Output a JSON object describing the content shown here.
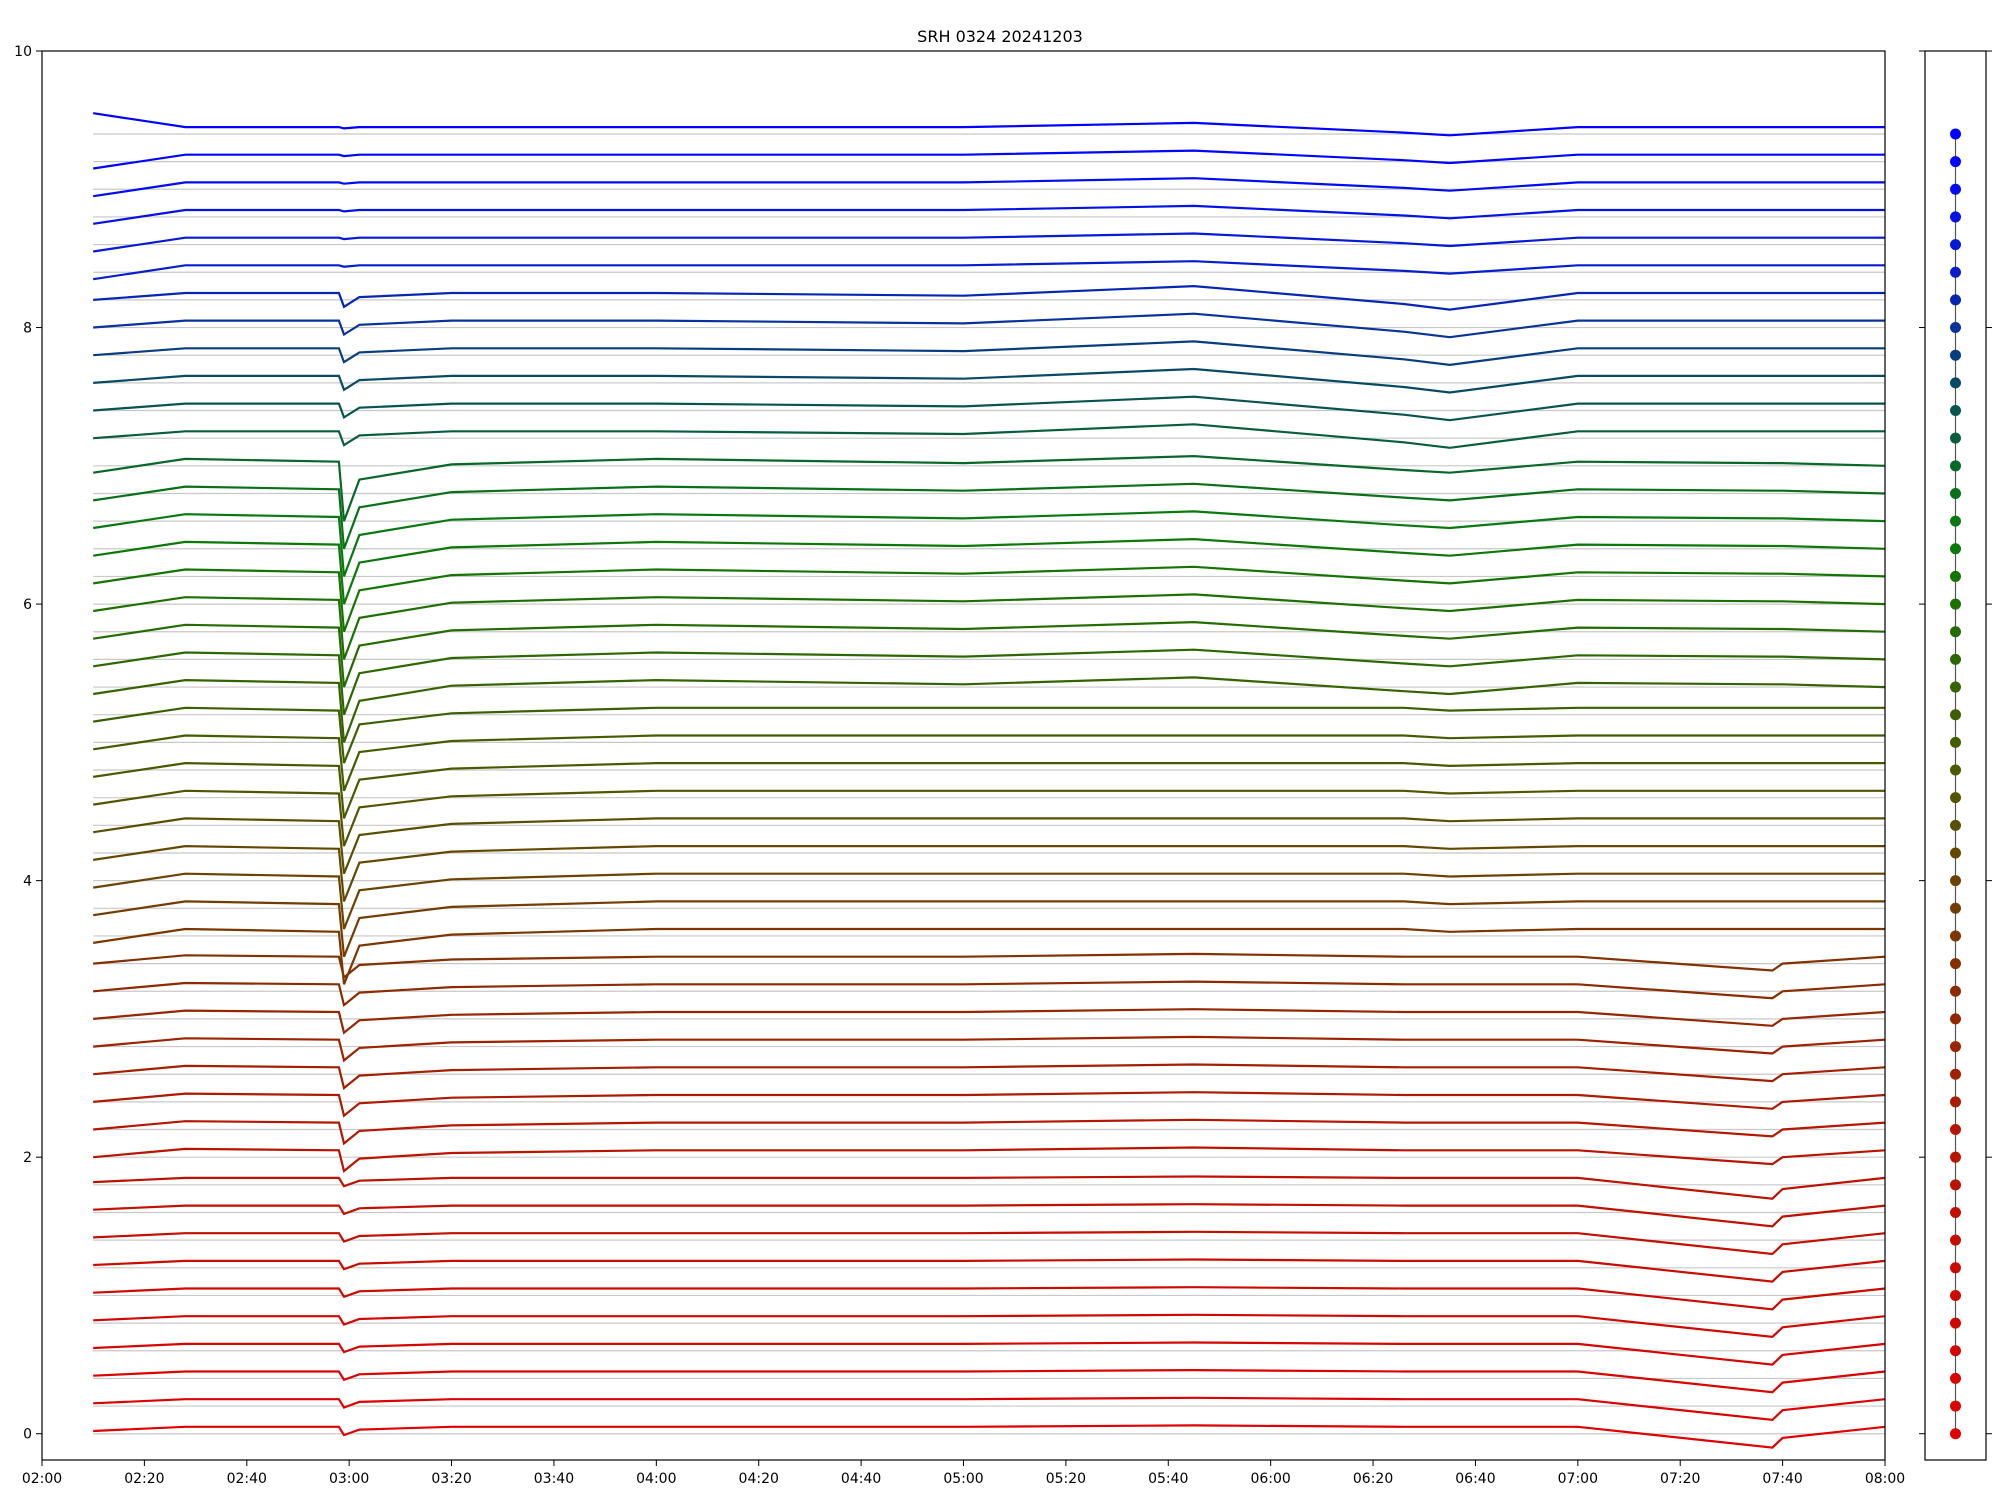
{
  "chart_data": [
    {
      "type": "line",
      "title": "SRH 0324 20241203",
      "x": [
        "02:10",
        "02:28",
        "02:58",
        "02:59",
        "03:02",
        "03:20",
        "04:00",
        "05:00",
        "05:45",
        "06:26",
        "06:35",
        "07:00",
        "07:38",
        "07:40",
        "08:00"
      ],
      "xlim": [
        "02:00",
        "08:00"
      ],
      "xticks": [
        "02:00",
        "02:20",
        "02:40",
        "03:00",
        "03:20",
        "03:40",
        "04:00",
        "04:20",
        "04:40",
        "05:00",
        "05:20",
        "05:40",
        "06:00",
        "06:20",
        "06:40",
        "07:00",
        "07:20",
        "07:40",
        "08:00"
      ],
      "ylim": [
        -0.19,
        10
      ],
      "yticks": [
        0,
        2,
        4,
        6,
        8,
        10
      ],
      "series": [
        {
          "color": "#e00000",
          "values": [
            0.02,
            0.05,
            0.05,
            -0.01,
            0.03,
            0.05,
            0.05,
            0.05,
            0.06,
            0.05,
            0.05,
            0.05,
            -0.1,
            -0.03,
            0.05
          ]
        },
        {
          "color": "#dc0200",
          "values": [
            0.22,
            0.25,
            0.25,
            0.19,
            0.23,
            0.25,
            0.25,
            0.25,
            0.26,
            0.25,
            0.25,
            0.25,
            0.1,
            0.17,
            0.25
          ]
        },
        {
          "color": "#d80400",
          "values": [
            0.42,
            0.45,
            0.45,
            0.39,
            0.43,
            0.45,
            0.45,
            0.45,
            0.46,
            0.45,
            0.45,
            0.45,
            0.3,
            0.37,
            0.45
          ]
        },
        {
          "color": "#d40600",
          "values": [
            0.62,
            0.65,
            0.65,
            0.59,
            0.63,
            0.65,
            0.65,
            0.65,
            0.66,
            0.65,
            0.65,
            0.65,
            0.5,
            0.57,
            0.65
          ]
        },
        {
          "color": "#d00800",
          "values": [
            0.82,
            0.85,
            0.85,
            0.79,
            0.83,
            0.85,
            0.85,
            0.85,
            0.86,
            0.85,
            0.85,
            0.85,
            0.7,
            0.77,
            0.85
          ]
        },
        {
          "color": "#cc0a00",
          "values": [
            1.02,
            1.05,
            1.05,
            0.99,
            1.03,
            1.05,
            1.05,
            1.05,
            1.06,
            1.05,
            1.05,
            1.05,
            0.9,
            0.97,
            1.05
          ]
        },
        {
          "color": "#c80c00",
          "values": [
            1.22,
            1.25,
            1.25,
            1.19,
            1.23,
            1.25,
            1.25,
            1.25,
            1.26,
            1.25,
            1.25,
            1.25,
            1.1,
            1.17,
            1.25
          ]
        },
        {
          "color": "#c40e00",
          "values": [
            1.42,
            1.45,
            1.45,
            1.39,
            1.43,
            1.45,
            1.45,
            1.45,
            1.46,
            1.45,
            1.45,
            1.45,
            1.3,
            1.37,
            1.45
          ]
        },
        {
          "color": "#c01000",
          "values": [
            1.62,
            1.65,
            1.65,
            1.59,
            1.63,
            1.65,
            1.65,
            1.65,
            1.66,
            1.65,
            1.65,
            1.65,
            1.5,
            1.57,
            1.65
          ]
        },
        {
          "color": "#bc1200",
          "values": [
            1.82,
            1.85,
            1.85,
            1.79,
            1.83,
            1.85,
            1.85,
            1.85,
            1.86,
            1.85,
            1.85,
            1.85,
            1.7,
            1.77,
            1.85
          ]
        },
        {
          "color": "#b81400",
          "values": [
            2.0,
            2.06,
            2.05,
            1.9,
            1.99,
            2.03,
            2.05,
            2.05,
            2.07,
            2.05,
            2.05,
            2.05,
            1.95,
            2.0,
            2.05
          ]
        },
        {
          "color": "#b41600",
          "values": [
            2.2,
            2.26,
            2.25,
            2.1,
            2.19,
            2.23,
            2.25,
            2.25,
            2.27,
            2.25,
            2.25,
            2.25,
            2.15,
            2.2,
            2.25
          ]
        },
        {
          "color": "#ac1a00",
          "values": [
            2.4,
            2.46,
            2.45,
            2.3,
            2.39,
            2.43,
            2.45,
            2.45,
            2.47,
            2.45,
            2.45,
            2.45,
            2.35,
            2.4,
            2.45
          ]
        },
        {
          "color": "#a41e00",
          "values": [
            2.6,
            2.66,
            2.65,
            2.5,
            2.59,
            2.63,
            2.65,
            2.65,
            2.67,
            2.65,
            2.65,
            2.65,
            2.55,
            2.6,
            2.65
          ]
        },
        {
          "color": "#9c2200",
          "values": [
            2.8,
            2.86,
            2.85,
            2.7,
            2.79,
            2.83,
            2.85,
            2.85,
            2.87,
            2.85,
            2.85,
            2.85,
            2.75,
            2.8,
            2.85
          ]
        },
        {
          "color": "#942600",
          "values": [
            3.0,
            3.06,
            3.05,
            2.9,
            2.99,
            3.03,
            3.05,
            3.05,
            3.07,
            3.05,
            3.05,
            3.05,
            2.95,
            3.0,
            3.05
          ]
        },
        {
          "color": "#8c2a00",
          "values": [
            3.2,
            3.26,
            3.25,
            3.1,
            3.19,
            3.23,
            3.25,
            3.25,
            3.27,
            3.25,
            3.25,
            3.25,
            3.15,
            3.2,
            3.25
          ]
        },
        {
          "color": "#843000",
          "values": [
            3.4,
            3.46,
            3.45,
            3.3,
            3.39,
            3.43,
            3.45,
            3.45,
            3.47,
            3.45,
            3.45,
            3.45,
            3.35,
            3.4,
            3.45
          ]
        },
        {
          "color": "#7c3600",
          "values": [
            3.55,
            3.65,
            3.63,
            3.25,
            3.53,
            3.61,
            3.65,
            3.65,
            3.65,
            3.65,
            3.63,
            3.65,
            3.65,
            3.65,
            3.65
          ]
        },
        {
          "color": "#743c00",
          "values": [
            3.75,
            3.85,
            3.83,
            3.45,
            3.73,
            3.81,
            3.85,
            3.85,
            3.85,
            3.85,
            3.83,
            3.85,
            3.85,
            3.85,
            3.85
          ]
        },
        {
          "color": "#6c4200",
          "values": [
            3.95,
            4.05,
            4.03,
            3.65,
            3.93,
            4.01,
            4.05,
            4.05,
            4.05,
            4.05,
            4.03,
            4.05,
            4.05,
            4.05,
            4.05
          ]
        },
        {
          "color": "#644800",
          "values": [
            4.15,
            4.25,
            4.23,
            3.85,
            4.13,
            4.21,
            4.25,
            4.25,
            4.25,
            4.25,
            4.23,
            4.25,
            4.25,
            4.25,
            4.25
          ]
        },
        {
          "color": "#5c4e00",
          "values": [
            4.35,
            4.45,
            4.43,
            4.05,
            4.33,
            4.41,
            4.45,
            4.45,
            4.45,
            4.45,
            4.43,
            4.45,
            4.45,
            4.45,
            4.45
          ]
        },
        {
          "color": "#545400",
          "values": [
            4.55,
            4.65,
            4.63,
            4.25,
            4.53,
            4.61,
            4.65,
            4.65,
            4.65,
            4.65,
            4.63,
            4.65,
            4.65,
            4.65,
            4.65
          ]
        },
        {
          "color": "#4c5800",
          "values": [
            4.75,
            4.85,
            4.83,
            4.45,
            4.73,
            4.81,
            4.85,
            4.85,
            4.85,
            4.85,
            4.83,
            4.85,
            4.85,
            4.85,
            4.85
          ]
        },
        {
          "color": "#445c00",
          "values": [
            4.95,
            5.05,
            5.03,
            4.65,
            4.93,
            5.01,
            5.05,
            5.05,
            5.05,
            5.05,
            5.03,
            5.05,
            5.05,
            5.05,
            5.05
          ]
        },
        {
          "color": "#3c6000",
          "values": [
            5.15,
            5.25,
            5.23,
            4.85,
            5.13,
            5.21,
            5.25,
            5.25,
            5.25,
            5.25,
            5.23,
            5.25,
            5.25,
            5.25,
            5.25
          ]
        },
        {
          "color": "#346400",
          "values": [
            5.35,
            5.45,
            5.43,
            5.0,
            5.3,
            5.41,
            5.45,
            5.42,
            5.47,
            5.37,
            5.35,
            5.43,
            5.42,
            5.42,
            5.4
          ]
        },
        {
          "color": "#2c6800",
          "values": [
            5.55,
            5.65,
            5.63,
            5.2,
            5.5,
            5.61,
            5.65,
            5.62,
            5.67,
            5.57,
            5.55,
            5.63,
            5.62,
            5.62,
            5.6
          ]
        },
        {
          "color": "#246c00",
          "values": [
            5.75,
            5.85,
            5.83,
            5.4,
            5.7,
            5.81,
            5.85,
            5.82,
            5.87,
            5.77,
            5.75,
            5.83,
            5.82,
            5.82,
            5.8
          ]
        },
        {
          "color": "#1c7000",
          "values": [
            5.95,
            6.05,
            6.03,
            5.6,
            5.9,
            6.01,
            6.05,
            6.02,
            6.07,
            5.97,
            5.95,
            6.03,
            6.02,
            6.02,
            6.0
          ]
        },
        {
          "color": "#147400",
          "values": [
            6.15,
            6.25,
            6.23,
            5.8,
            6.1,
            6.21,
            6.25,
            6.22,
            6.27,
            6.17,
            6.15,
            6.23,
            6.22,
            6.22,
            6.2
          ]
        },
        {
          "color": "#0c7808",
          "values": [
            6.35,
            6.45,
            6.43,
            6.0,
            6.3,
            6.41,
            6.45,
            6.42,
            6.47,
            6.37,
            6.35,
            6.43,
            6.42,
            6.42,
            6.4
          ]
        },
        {
          "color": "#087810",
          "values": [
            6.55,
            6.65,
            6.63,
            6.2,
            6.5,
            6.61,
            6.65,
            6.62,
            6.67,
            6.57,
            6.55,
            6.63,
            6.62,
            6.62,
            6.6
          ]
        },
        {
          "color": "#087018",
          "values": [
            6.75,
            6.85,
            6.83,
            6.4,
            6.7,
            6.81,
            6.85,
            6.82,
            6.87,
            6.77,
            6.75,
            6.83,
            6.82,
            6.82,
            6.8
          ]
        },
        {
          "color": "#086828",
          "values": [
            6.95,
            7.05,
            7.03,
            6.6,
            6.9,
            7.01,
            7.05,
            7.02,
            7.07,
            6.97,
            6.95,
            7.03,
            7.02,
            7.02,
            7.0
          ]
        },
        {
          "color": "#085e3c",
          "values": [
            7.2,
            7.25,
            7.25,
            7.15,
            7.22,
            7.25,
            7.25,
            7.23,
            7.3,
            7.17,
            7.13,
            7.25,
            7.25,
            7.25,
            7.25
          ]
        },
        {
          "color": "#085450",
          "values": [
            7.4,
            7.45,
            7.45,
            7.35,
            7.42,
            7.45,
            7.45,
            7.43,
            7.5,
            7.37,
            7.33,
            7.45,
            7.45,
            7.45,
            7.45
          ]
        },
        {
          "color": "#084a64",
          "values": [
            7.6,
            7.65,
            7.65,
            7.55,
            7.62,
            7.65,
            7.65,
            7.63,
            7.7,
            7.57,
            7.53,
            7.65,
            7.65,
            7.65,
            7.65
          ]
        },
        {
          "color": "#083e80",
          "values": [
            7.8,
            7.85,
            7.85,
            7.75,
            7.82,
            7.85,
            7.85,
            7.83,
            7.9,
            7.77,
            7.73,
            7.85,
            7.85,
            7.85,
            7.85
          ]
        },
        {
          "color": "#08329c",
          "values": [
            8.0,
            8.05,
            8.05,
            7.95,
            8.02,
            8.05,
            8.05,
            8.03,
            8.1,
            7.97,
            7.93,
            8.05,
            8.05,
            8.05,
            8.05
          ]
        },
        {
          "color": "#0826b4",
          "values": [
            8.2,
            8.25,
            8.25,
            8.15,
            8.22,
            8.25,
            8.25,
            8.23,
            8.3,
            8.17,
            8.13,
            8.25,
            8.25,
            8.25,
            8.25
          ]
        },
        {
          "color": "#081ecc",
          "values": [
            8.35,
            8.45,
            8.45,
            8.44,
            8.45,
            8.45,
            8.45,
            8.45,
            8.48,
            8.41,
            8.39,
            8.45,
            8.45,
            8.45,
            8.45
          ]
        },
        {
          "color": "#0618d8",
          "values": [
            8.55,
            8.65,
            8.65,
            8.64,
            8.65,
            8.65,
            8.65,
            8.65,
            8.68,
            8.61,
            8.59,
            8.65,
            8.65,
            8.65,
            8.65
          ]
        },
        {
          "color": "#0412e4",
          "values": [
            8.75,
            8.85,
            8.85,
            8.84,
            8.85,
            8.85,
            8.85,
            8.85,
            8.88,
            8.81,
            8.79,
            8.85,
            8.85,
            8.85,
            8.85
          ]
        },
        {
          "color": "#020cf0",
          "values": [
            8.95,
            9.05,
            9.05,
            9.04,
            9.05,
            9.05,
            9.05,
            9.05,
            9.08,
            9.01,
            8.99,
            9.05,
            9.05,
            9.05,
            9.05
          ]
        },
        {
          "color": "#0006fa",
          "values": [
            9.15,
            9.25,
            9.25,
            9.24,
            9.25,
            9.25,
            9.25,
            9.25,
            9.28,
            9.21,
            9.19,
            9.25,
            9.25,
            9.25,
            9.25
          ]
        },
        {
          "color": "#0000ff",
          "values": [
            9.55,
            9.45,
            9.45,
            9.44,
            9.45,
            9.45,
            9.45,
            9.45,
            9.48,
            9.41,
            9.39,
            9.45,
            9.45,
            9.45,
            9.45
          ]
        }
      ]
    },
    {
      "type": "dots",
      "ylim": [
        -0.19,
        10
      ],
      "yticks": [
        0,
        2,
        4,
        6,
        8,
        10
      ],
      "values": [
        0,
        0.2,
        0.4,
        0.6,
        0.8,
        1.0,
        1.2,
        1.4,
        1.6,
        1.8,
        2.0,
        2.2,
        2.4,
        2.6,
        2.8,
        3.0,
        3.2,
        3.4,
        3.6,
        3.8,
        4.0,
        4.2,
        4.4,
        4.6,
        4.8,
        5.0,
        5.2,
        5.4,
        5.6,
        5.8,
        6.0,
        6.2,
        6.4,
        6.6,
        6.8,
        7.0,
        7.2,
        7.4,
        7.6,
        7.8,
        8.0,
        8.2,
        8.4,
        8.6,
        8.8,
        9.0,
        9.2,
        9.4
      ]
    }
  ]
}
